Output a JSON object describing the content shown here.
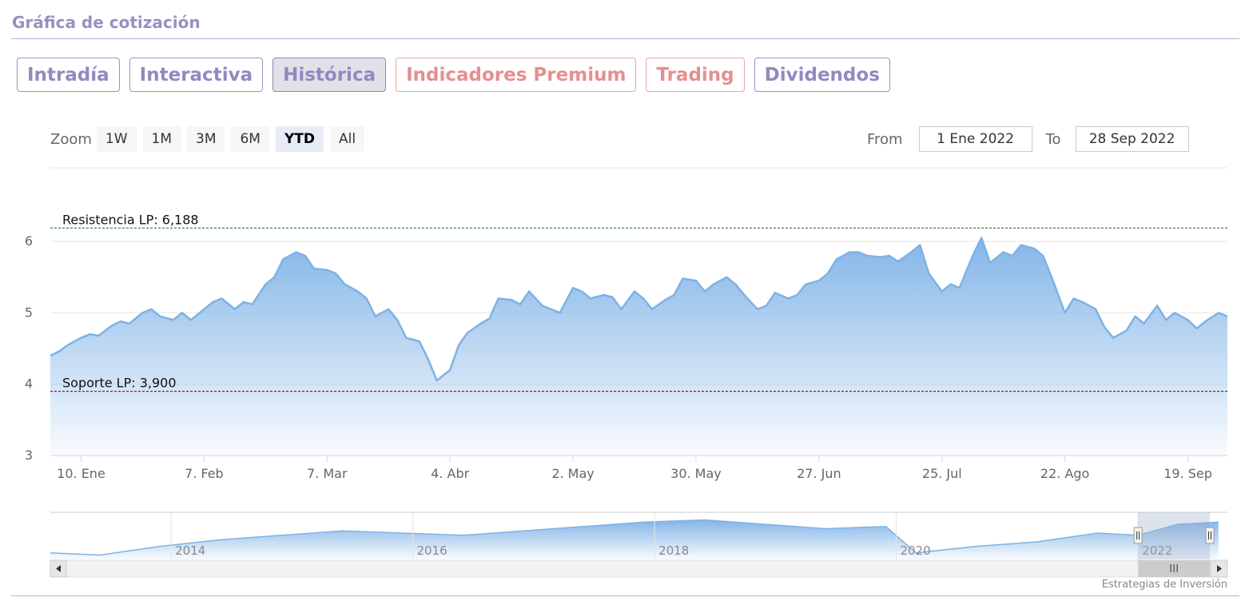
{
  "section_title": "Gráfica de cotización",
  "tabs": [
    {
      "label": "Intradía",
      "style": "normal"
    },
    {
      "label": "Interactiva",
      "style": "normal"
    },
    {
      "label": "Histórica",
      "style": "active"
    },
    {
      "label": "Indicadores Premium",
      "style": "premium"
    },
    {
      "label": "Trading",
      "style": "premium"
    },
    {
      "label": "Dividendos",
      "style": "normal"
    }
  ],
  "zoom": {
    "label": "Zoom",
    "buttons": [
      "1W",
      "1M",
      "3M",
      "6M",
      "YTD",
      "All"
    ],
    "selected": "YTD"
  },
  "range": {
    "from_label": "From",
    "from_value": "1 Ene 2022",
    "to_label": "To",
    "to_value": "28 Sep 2022"
  },
  "credits": "Estrategias de Inversión",
  "colors": {
    "line": "#7eb2e4",
    "fill_top": "#83b5e8",
    "resistance": "#2e7d32",
    "support": "#8b1a2b",
    "navigator_mask": "#9fb0cc"
  },
  "chart_data": {
    "type": "area",
    "title": "",
    "ylim": [
      3,
      6.3
    ],
    "y_ticks": [
      3,
      4,
      5,
      6
    ],
    "x_range": [
      "2022-01-03",
      "2022-09-28"
    ],
    "x_ticks": [
      {
        "date": "2022-01-10",
        "label": "10. Ene"
      },
      {
        "date": "2022-02-07",
        "label": "7. Feb"
      },
      {
        "date": "2022-03-07",
        "label": "7. Mar"
      },
      {
        "date": "2022-04-04",
        "label": "4. Abr"
      },
      {
        "date": "2022-05-02",
        "label": "2. May"
      },
      {
        "date": "2022-05-30",
        "label": "30. May"
      },
      {
        "date": "2022-06-27",
        "label": "27. Jun"
      },
      {
        "date": "2022-07-25",
        "label": "25. Jul"
      },
      {
        "date": "2022-08-22",
        "label": "22. Ago"
      },
      {
        "date": "2022-09-19",
        "label": "19. Sep"
      }
    ],
    "series": [
      {
        "points": [
          [
            "2022-01-03",
            4.4
          ],
          [
            "2022-01-05",
            4.46
          ],
          [
            "2022-01-07",
            4.55
          ],
          [
            "2022-01-10",
            4.65
          ],
          [
            "2022-01-12",
            4.7
          ],
          [
            "2022-01-14",
            4.68
          ],
          [
            "2022-01-17",
            4.82
          ],
          [
            "2022-01-19",
            4.88
          ],
          [
            "2022-01-21",
            4.85
          ],
          [
            "2022-01-24",
            5.0
          ],
          [
            "2022-01-26",
            5.05
          ],
          [
            "2022-01-28",
            4.95
          ],
          [
            "2022-01-31",
            4.9
          ],
          [
            "2022-02-02",
            5.0
          ],
          [
            "2022-02-04",
            4.9
          ],
          [
            "2022-02-07",
            5.05
          ],
          [
            "2022-02-09",
            5.15
          ],
          [
            "2022-02-11",
            5.2
          ],
          [
            "2022-02-14",
            5.05
          ],
          [
            "2022-02-16",
            5.15
          ],
          [
            "2022-02-18",
            5.12
          ],
          [
            "2022-02-21",
            5.4
          ],
          [
            "2022-02-23",
            5.5
          ],
          [
            "2022-02-25",
            5.75
          ],
          [
            "2022-02-28",
            5.85
          ],
          [
            "2022-03-02",
            5.8
          ],
          [
            "2022-03-04",
            5.62
          ],
          [
            "2022-03-07",
            5.6
          ],
          [
            "2022-03-09",
            5.55
          ],
          [
            "2022-03-11",
            5.4
          ],
          [
            "2022-03-14",
            5.3
          ],
          [
            "2022-03-16",
            5.2
          ],
          [
            "2022-03-18",
            4.95
          ],
          [
            "2022-03-21",
            5.05
          ],
          [
            "2022-03-23",
            4.9
          ],
          [
            "2022-03-25",
            4.65
          ],
          [
            "2022-03-28",
            4.6
          ],
          [
            "2022-03-30",
            4.35
          ],
          [
            "2022-04-01",
            4.05
          ],
          [
            "2022-04-04",
            4.2
          ],
          [
            "2022-04-06",
            4.55
          ],
          [
            "2022-04-08",
            4.72
          ],
          [
            "2022-04-11",
            4.85
          ],
          [
            "2022-04-13",
            4.92
          ],
          [
            "2022-04-15",
            5.2
          ],
          [
            "2022-04-18",
            5.18
          ],
          [
            "2022-04-20",
            5.12
          ],
          [
            "2022-04-22",
            5.3
          ],
          [
            "2022-04-25",
            5.1
          ],
          [
            "2022-04-27",
            5.05
          ],
          [
            "2022-04-29",
            5.0
          ],
          [
            "2022-05-02",
            5.35
          ],
          [
            "2022-05-04",
            5.3
          ],
          [
            "2022-05-06",
            5.2
          ],
          [
            "2022-05-09",
            5.25
          ],
          [
            "2022-05-11",
            5.22
          ],
          [
            "2022-05-13",
            5.05
          ],
          [
            "2022-05-16",
            5.3
          ],
          [
            "2022-05-18",
            5.2
          ],
          [
            "2022-05-20",
            5.05
          ],
          [
            "2022-05-23",
            5.18
          ],
          [
            "2022-05-25",
            5.25
          ],
          [
            "2022-05-27",
            5.48
          ],
          [
            "2022-05-30",
            5.45
          ],
          [
            "2022-06-01",
            5.3
          ],
          [
            "2022-06-03",
            5.4
          ],
          [
            "2022-06-06",
            5.5
          ],
          [
            "2022-06-08",
            5.4
          ],
          [
            "2022-06-10",
            5.25
          ],
          [
            "2022-06-13",
            5.05
          ],
          [
            "2022-06-15",
            5.1
          ],
          [
            "2022-06-17",
            5.28
          ],
          [
            "2022-06-20",
            5.2
          ],
          [
            "2022-06-22",
            5.25
          ],
          [
            "2022-06-24",
            5.4
          ],
          [
            "2022-06-27",
            5.45
          ],
          [
            "2022-06-29",
            5.55
          ],
          [
            "2022-07-01",
            5.75
          ],
          [
            "2022-07-04",
            5.85
          ],
          [
            "2022-07-06",
            5.85
          ],
          [
            "2022-07-08",
            5.8
          ],
          [
            "2022-07-11",
            5.78
          ],
          [
            "2022-07-13",
            5.8
          ],
          [
            "2022-07-15",
            5.72
          ],
          [
            "2022-07-18",
            5.85
          ],
          [
            "2022-07-20",
            5.95
          ],
          [
            "2022-07-22",
            5.55
          ],
          [
            "2022-07-25",
            5.3
          ],
          [
            "2022-07-27",
            5.4
          ],
          [
            "2022-07-29",
            5.35
          ],
          [
            "2022-08-01",
            5.8
          ],
          [
            "2022-08-03",
            6.05
          ],
          [
            "2022-08-05",
            5.7
          ],
          [
            "2022-08-08",
            5.85
          ],
          [
            "2022-08-10",
            5.8
          ],
          [
            "2022-08-12",
            5.95
          ],
          [
            "2022-08-15",
            5.9
          ],
          [
            "2022-08-17",
            5.8
          ],
          [
            "2022-08-19",
            5.5
          ],
          [
            "2022-08-22",
            5.0
          ],
          [
            "2022-08-24",
            5.2
          ],
          [
            "2022-08-26",
            5.15
          ],
          [
            "2022-08-29",
            5.05
          ],
          [
            "2022-08-31",
            4.8
          ],
          [
            "2022-09-02",
            4.65
          ],
          [
            "2022-09-05",
            4.75
          ],
          [
            "2022-09-07",
            4.95
          ],
          [
            "2022-09-09",
            4.85
          ],
          [
            "2022-09-12",
            5.1
          ],
          [
            "2022-09-14",
            4.9
          ],
          [
            "2022-09-16",
            5.0
          ],
          [
            "2022-09-19",
            4.9
          ],
          [
            "2022-09-21",
            4.78
          ],
          [
            "2022-09-23",
            4.88
          ],
          [
            "2022-09-26",
            5.0
          ],
          [
            "2022-09-28",
            4.95
          ]
        ]
      }
    ],
    "reference_lines": [
      {
        "label": "Resistencia LP: 6,188",
        "value": 6.188,
        "color": "#2e7d32"
      },
      {
        "label": "Soporte LP: 3,900",
        "value": 3.9,
        "color": "#8b1a2b"
      }
    ],
    "navigator": {
      "tick_labels": [
        "2014",
        "2016",
        "2018",
        "2020",
        "2022"
      ],
      "selected_range": [
        "2022-01-01",
        "2022-09-28"
      ],
      "points": [
        [
          "2013-01",
          4.3
        ],
        [
          "2013-06",
          4.2
        ],
        [
          "2013-12",
          4.6
        ],
        [
          "2014-06",
          4.9
        ],
        [
          "2014-12",
          5.1
        ],
        [
          "2015-06",
          5.3
        ],
        [
          "2015-12",
          5.2
        ],
        [
          "2016-06",
          5.1
        ],
        [
          "2016-12",
          5.3
        ],
        [
          "2017-06",
          5.5
        ],
        [
          "2017-12",
          5.7
        ],
        [
          "2018-06",
          5.8
        ],
        [
          "2018-12",
          5.6
        ],
        [
          "2019-06",
          5.4
        ],
        [
          "2019-12",
          5.5
        ],
        [
          "2020-03",
          4.3
        ],
        [
          "2020-09",
          4.6
        ],
        [
          "2021-03",
          4.8
        ],
        [
          "2021-09",
          5.2
        ],
        [
          "2022-01",
          5.1
        ],
        [
          "2022-05",
          5.6
        ],
        [
          "2022-09",
          5.7
        ]
      ]
    }
  }
}
